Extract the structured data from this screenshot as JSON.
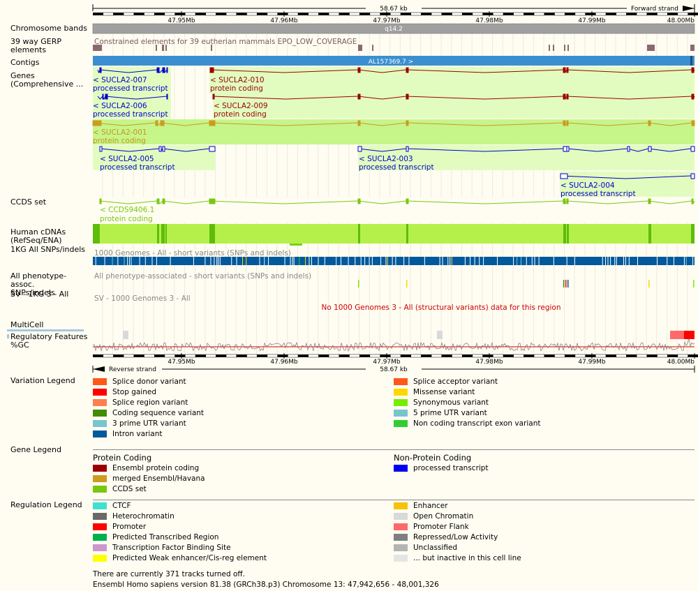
{
  "ruler": {
    "span_top": "58.67 kb",
    "strand_top": "Forward strand",
    "span_bottom": "58.67 kb",
    "strand_bottom": "Reverse strand",
    "ticks": [
      "47.95Mb",
      "47.96Mb",
      "47.97Mb",
      "47.98Mb",
      "47.99Mb",
      "48.00Mb"
    ]
  },
  "tracks": {
    "chromosome_bands": "Chromosome bands",
    "band_label": "q14.2",
    "gerp_label": "39 way GERP elements",
    "gerp_text": "Constrained elements for 39 eutherian mammals EPO_LOW_COVERAGE",
    "contigs_label": "Contigs",
    "contig_name": "AL157369.7 >",
    "genes_label": "Genes (Comprehensive ...",
    "ccds_label": "CCDS set",
    "cdna_label": "Human cDNAs (RefSeq/ENA)",
    "kg_label": "1KG All SNPs/indels",
    "kg_text": "1000 Genomes - All - short variants (SNPs and indels)",
    "pheno_label": "All phenotype-assoc. SNPs/indels",
    "pheno_text": "All phenotype-associated - short variants (SNPs and indels)",
    "sv_label": "SV - 1KG 3 - All",
    "sv_text": "SV - 1000 Genomes 3 - All",
    "sv_nodata": "No 1000 Genomes 3 - All (structural variants) data for this region",
    "multicell_label": "MultiCell",
    "regfeat_label": "Regulatory Features",
    "gc_label": "%GC"
  },
  "transcripts": [
    {
      "name": "< SUCLA2-007",
      "type": "processed transcript"
    },
    {
      "name": "< SUCLA2-010",
      "type": "protein coding"
    },
    {
      "name": "< SUCLA2-006",
      "type": "processed transcript"
    },
    {
      "name": "< SUCLA2-009",
      "type": "protein coding"
    },
    {
      "name": "< SUCLA2-001",
      "type": "protein coding"
    },
    {
      "name": "< SUCLA2-005",
      "type": "processed transcript"
    },
    {
      "name": "< SUCLA2-003",
      "type": "processed transcript"
    },
    {
      "name": "< SUCLA2-004",
      "type": "processed transcript"
    },
    {
      "name": "< CCDS9406.1",
      "type": "protein coding"
    }
  ],
  "variation_legend": {
    "title": "Variation Legend",
    "items": [
      {
        "label": "Splice donor variant",
        "color": "#ff581a"
      },
      {
        "label": "Splice acceptor variant",
        "color": "#ff581a"
      },
      {
        "label": "Stop gained",
        "color": "#ff0000"
      },
      {
        "label": "Missense variant",
        "color": "#ffd700"
      },
      {
        "label": "Splice region variant",
        "color": "#ff7f50"
      },
      {
        "label": "Synonymous variant",
        "color": "#76ee00"
      },
      {
        "label": "Coding sequence variant",
        "color": "#458b00"
      },
      {
        "label": "5 prime UTR variant",
        "color": "#7ac5cd"
      },
      {
        "label": "3 prime UTR variant",
        "color": "#7ac5cd"
      },
      {
        "label": "Non coding transcript exon variant",
        "color": "#32cd32"
      },
      {
        "label": "Intron variant",
        "color": "#02599c"
      }
    ]
  },
  "gene_legend": {
    "title": "Gene Legend",
    "pc_title": "Protein Coding",
    "npc_title": "Non-Protein Coding",
    "pc_items": [
      {
        "label": "Ensembl protein coding",
        "color": "#9a0000"
      },
      {
        "label": "merged Ensembl/Havana",
        "color": "#cd9b1d"
      },
      {
        "label": "CCDS set",
        "color": "#7ac70f"
      }
    ],
    "npc_items": [
      {
        "label": "processed transcript",
        "color": "#0000ee"
      }
    ]
  },
  "regulation_legend": {
    "title": "Regulation Legend",
    "items": [
      {
        "label": "CTCF",
        "color": "#40e0d0"
      },
      {
        "label": "Enhancer",
        "color": "#f8c10a"
      },
      {
        "label": "Heterochromatin",
        "color": "#696969"
      },
      {
        "label": "Open Chromatin",
        "color": "#d9d9d9"
      },
      {
        "label": "Promoter",
        "color": "#ff0000"
      },
      {
        "label": "Promoter Flank",
        "color": "#ff6969"
      },
      {
        "label": "Predicted Transcribed Region",
        "color": "#00b050"
      },
      {
        "label": "Repressed/Low Activity",
        "color": "#7f7f7f"
      },
      {
        "label": "Transcription Factor Binding Site",
        "color": "#cd96cd"
      },
      {
        "label": "Unclassified",
        "color": "#b4b4b4"
      },
      {
        "label": "Predicted Weak enhancer/Cis-reg element",
        "color": "#ffff00"
      },
      {
        "label": "... but inactive in this cell line",
        "color": "#e5e5e5"
      }
    ]
  },
  "footer": {
    "tracks_off": "There are currently 371 tracks turned off.",
    "version": "Ensembl Homo sapiens version 81.38 (GRCh38.p3) Chromosome 13: 47,942,656 - 48,001,326"
  }
}
